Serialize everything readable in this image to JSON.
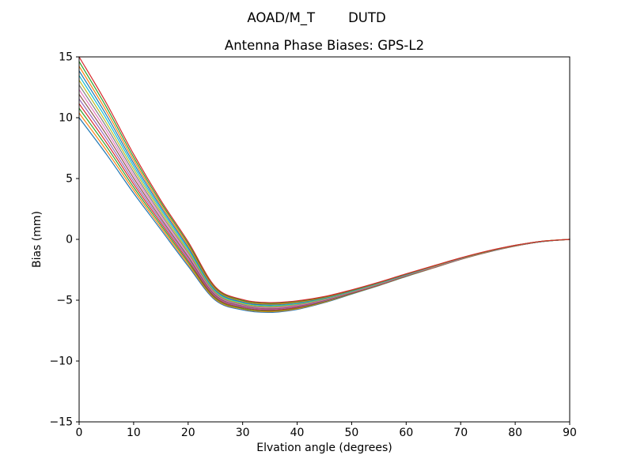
{
  "figure": {
    "suptitle": "AOAD/M_T        DUTD",
    "title": "Antenna Phase Biases: GPS-L2"
  },
  "chart_data": {
    "type": "line",
    "suptitle": "AOAD/M_T        DUTD",
    "title": "Antenna Phase Biases: GPS-L2",
    "xlabel": "Elvation angle (degrees)",
    "ylabel": "Bias (mm)",
    "xlim": [
      0,
      90
    ],
    "ylim": [
      -15,
      15
    ],
    "xticks": [
      0,
      10,
      20,
      30,
      40,
      50,
      60,
      70,
      80,
      90
    ],
    "yticks": [
      -15,
      -10,
      -5,
      0,
      5,
      10,
      15
    ],
    "grid": false,
    "legend": "none",
    "line_width": 1.2,
    "x": [
      0,
      5,
      10,
      15,
      20,
      25,
      30,
      35,
      40,
      45,
      50,
      55,
      60,
      65,
      70,
      75,
      80,
      85,
      90
    ],
    "series": [
      {
        "name": "line-01",
        "color": "#1f77b4",
        "values": [
          10.0,
          7.0,
          3.8,
          0.8,
          -2.2,
          -5.0,
          -5.8,
          -6.0,
          -5.75,
          -5.2,
          -4.5,
          -3.8,
          -3.05,
          -2.35,
          -1.65,
          -1.05,
          -0.55,
          -0.18,
          0.0
        ]
      },
      {
        "name": "line-02",
        "color": "#ff7f0e",
        "values": [
          10.38,
          7.32,
          4.05,
          0.98,
          -2.05,
          -4.92,
          -5.73,
          -5.94,
          -5.7,
          -5.16,
          -4.47,
          -3.78,
          -3.03,
          -2.34,
          -1.64,
          -1.04,
          -0.55,
          -0.18,
          0.0
        ]
      },
      {
        "name": "line-03",
        "color": "#2ca02c",
        "values": [
          10.77,
          7.65,
          4.29,
          1.17,
          -1.89,
          -4.83,
          -5.67,
          -5.88,
          -5.64,
          -5.12,
          -4.45,
          -3.76,
          -3.02,
          -2.32,
          -1.63,
          -1.03,
          -0.54,
          -0.18,
          0.0
        ]
      },
      {
        "name": "line-04",
        "color": "#d62728",
        "values": [
          11.15,
          7.97,
          4.54,
          1.35,
          -1.74,
          -4.75,
          -5.6,
          -5.82,
          -5.59,
          -5.08,
          -4.42,
          -3.74,
          -3.0,
          -2.31,
          -1.62,
          -1.03,
          -0.54,
          -0.17,
          0.0
        ]
      },
      {
        "name": "line-05",
        "color": "#9467bd",
        "values": [
          11.54,
          8.29,
          4.78,
          1.54,
          -1.58,
          -4.66,
          -5.54,
          -5.75,
          -5.53,
          -5.05,
          -4.39,
          -3.71,
          -2.98,
          -2.29,
          -1.61,
          -1.02,
          -0.53,
          -0.17,
          0.0
        ]
      },
      {
        "name": "line-06",
        "color": "#8c564b",
        "values": [
          11.92,
          8.62,
          5.03,
          1.72,
          -1.43,
          -4.58,
          -5.47,
          -5.69,
          -5.48,
          -5.01,
          -4.37,
          -3.69,
          -2.97,
          -2.28,
          -1.6,
          -1.01,
          -0.53,
          -0.17,
          0.0
        ]
      },
      {
        "name": "line-07",
        "color": "#e377c2",
        "values": [
          12.31,
          8.94,
          5.28,
          1.91,
          -1.28,
          -4.49,
          -5.41,
          -5.63,
          -5.43,
          -4.97,
          -4.34,
          -3.67,
          -2.95,
          -2.27,
          -1.59,
          -1.0,
          -0.52,
          -0.17,
          0.0
        ]
      },
      {
        "name": "line-08",
        "color": "#7f7f7f",
        "values": [
          12.69,
          9.26,
          5.52,
          2.09,
          -1.12,
          -4.41,
          -5.35,
          -5.57,
          -5.37,
          -4.93,
          -4.31,
          -3.65,
          -2.93,
          -2.25,
          -1.58,
          -1.0,
          -0.52,
          -0.16,
          0.0
        ]
      },
      {
        "name": "line-09",
        "color": "#bcbd22",
        "values": [
          13.08,
          9.58,
          5.77,
          2.28,
          -0.97,
          -4.32,
          -5.28,
          -5.51,
          -5.32,
          -4.89,
          -4.28,
          -3.63,
          -2.91,
          -2.24,
          -1.57,
          -0.99,
          -0.51,
          -0.16,
          0.0
        ]
      },
      {
        "name": "line-10",
        "color": "#17becf",
        "values": [
          13.46,
          9.91,
          6.02,
          2.46,
          -0.82,
          -4.24,
          -5.21,
          -5.45,
          -5.27,
          -4.85,
          -4.26,
          -3.61,
          -2.9,
          -2.23,
          -1.56,
          -0.98,
          -0.51,
          -0.16,
          0.0
        ]
      },
      {
        "name": "line-11",
        "color": "#1f77b4",
        "values": [
          13.85,
          10.23,
          6.26,
          2.65,
          -0.66,
          -4.15,
          -5.15,
          -5.38,
          -5.21,
          -4.82,
          -4.23,
          -3.58,
          -2.88,
          -2.21,
          -1.55,
          -0.97,
          -0.5,
          -0.16,
          0.0
        ]
      },
      {
        "name": "line-12",
        "color": "#ff7f0e",
        "values": [
          14.23,
          10.55,
          6.51,
          2.83,
          -0.51,
          -4.07,
          -5.08,
          -5.32,
          -5.16,
          -4.78,
          -4.2,
          -3.56,
          -2.86,
          -2.2,
          -1.54,
          -0.97,
          -0.5,
          -0.15,
          0.0
        ]
      },
      {
        "name": "line-13",
        "color": "#2ca02c",
        "values": [
          14.62,
          10.88,
          6.75,
          3.02,
          -0.35,
          -3.98,
          -5.02,
          -5.26,
          -5.1,
          -4.74,
          -4.18,
          -3.54,
          -2.85,
          -2.18,
          -1.53,
          -0.96,
          -0.49,
          -0.15,
          0.0
        ]
      },
      {
        "name": "line-14",
        "color": "#d62728",
        "values": [
          15.0,
          11.2,
          7.0,
          3.2,
          -0.2,
          -3.9,
          -4.95,
          -5.2,
          -5.05,
          -4.7,
          -4.15,
          -3.52,
          -2.83,
          -2.17,
          -1.52,
          -0.95,
          -0.49,
          -0.15,
          0.0
        ]
      }
    ]
  }
}
